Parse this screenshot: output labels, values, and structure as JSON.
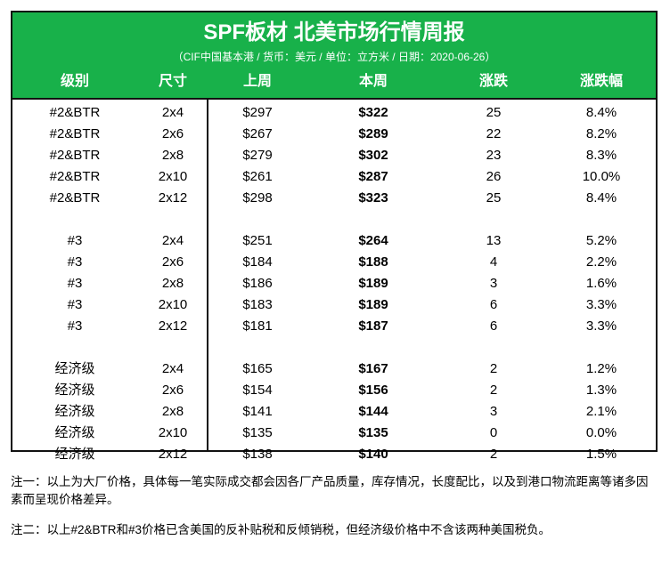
{
  "title": "SPF板材 北美市场行情周报",
  "subtitle": "（CIF中国基本港 / 货币：美元 / 单位：立方米 / 日期：2020-06-26）",
  "colors": {
    "header_bg": "#18b14a",
    "header_text": "#ffffff",
    "border": "#111111"
  },
  "columns": [
    "级别",
    "尺寸",
    "上周",
    "本周",
    "涨跌",
    "涨跌幅"
  ],
  "groups": [
    {
      "rows": [
        [
          "#2&BTR",
          "2x4",
          "$297",
          "$322",
          "25",
          "8.4%"
        ],
        [
          "#2&BTR",
          "2x6",
          "$267",
          "$289",
          "22",
          "8.2%"
        ],
        [
          "#2&BTR",
          "2x8",
          "$279",
          "$302",
          "23",
          "8.3%"
        ],
        [
          "#2&BTR",
          "2x10",
          "$261",
          "$287",
          "26",
          "10.0%"
        ],
        [
          "#2&BTR",
          "2x12",
          "$298",
          "$323",
          "25",
          "8.4%"
        ]
      ]
    },
    {
      "rows": [
        [
          "#3",
          "2x4",
          "$251",
          "$264",
          "13",
          "5.2%"
        ],
        [
          "#3",
          "2x6",
          "$184",
          "$188",
          "4",
          "2.2%"
        ],
        [
          "#3",
          "2x8",
          "$186",
          "$189",
          "3",
          "1.6%"
        ],
        [
          "#3",
          "2x10",
          "$183",
          "$189",
          "6",
          "3.3%"
        ],
        [
          "#3",
          "2x12",
          "$181",
          "$187",
          "6",
          "3.3%"
        ]
      ]
    },
    {
      "rows": [
        [
          "经济级",
          "2x4",
          "$165",
          "$167",
          "2",
          "1.2%"
        ],
        [
          "经济级",
          "2x6",
          "$154",
          "$156",
          "2",
          "1.3%"
        ],
        [
          "经济级",
          "2x8",
          "$141",
          "$144",
          "3",
          "2.1%"
        ],
        [
          "经济级",
          "2x10",
          "$135",
          "$135",
          "0",
          "0.0%"
        ],
        [
          "经济级",
          "2x12",
          "$138",
          "$140",
          "2",
          "1.5%"
        ]
      ]
    }
  ],
  "notes": [
    "注一：以上为大厂价格，具体每一笔实际成交都会因各厂产品质量，库存情况，长度配比，以及到港口物流距离等诸多因素而呈现价格差异。",
    "注二：以上#2&BTR和#3价格已含美国的反补贴税和反倾销税，但经济级价格中不含该两种美国税负。"
  ]
}
